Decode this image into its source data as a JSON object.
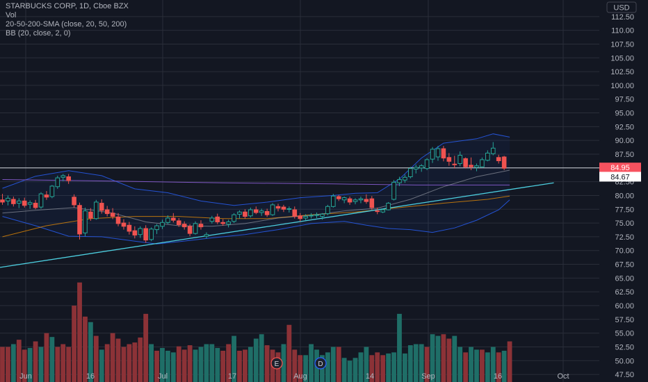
{
  "legend": {
    "title": "STARBUCKS CORP, 1D, Cboe BZX",
    "vol": "Vol",
    "sma": "20-50-200-SMA (close, 20, 50, 200)",
    "bb": "BB (20, close, 2, 0)"
  },
  "currency_button": "USD",
  "colors": {
    "background": "#131722",
    "grid": "#2a2e39",
    "up": "#26a69a",
    "down": "#ef5350",
    "up_volume": "#1f6e67",
    "down_volume": "#8c3237",
    "bb_band": "#2962ff",
    "sma20": "#b2b5be",
    "sma50": "#ff9800",
    "sma200": "#7e57c2",
    "trendline": "#4dd0e1",
    "hline": "#d1d4dc",
    "text": "#b2b5be"
  },
  "price_labels": [
    {
      "value": 84.95,
      "text": "84.95",
      "bg": "#f7525f",
      "fg": "#ffffff"
    },
    {
      "value": 84.67,
      "text": "84.67",
      "bg": "#ffffff",
      "fg": "#131722"
    }
  ],
  "markers": [
    "E",
    "D"
  ],
  "chart_data": {
    "type": "candlestick",
    "y_ticks": [
      47.5,
      50.0,
      52.5,
      55.0,
      57.5,
      60.0,
      62.5,
      65.0,
      67.5,
      70.0,
      72.5,
      75.0,
      77.5,
      80.0,
      82.5,
      85.0,
      87.5,
      90.0,
      92.5,
      95.0,
      97.5,
      100.0,
      102.5,
      105.0,
      107.5,
      110.0,
      112.5
    ],
    "y_tick_labels": [
      "47.50",
      "50.00",
      "52.50",
      "55.00",
      "57.50",
      "60.00",
      "62.50",
      "65.00",
      "67.50",
      "70.00",
      "72.50",
      "75.00",
      "77.50",
      "80.00",
      "82.50",
      "85.00",
      "87.50",
      "90.00",
      "92.50",
      "95.00",
      "97.50",
      "100.00",
      "102.50",
      "105.00",
      "107.50",
      "110.00",
      "112.50"
    ],
    "ylim": [
      46.5,
      115.0
    ],
    "x_labels": [
      "Jun",
      "16",
      "Jul",
      "17",
      "Aug",
      "14",
      "Sep",
      "16",
      "Oct"
    ],
    "horizontal_line": 85.0,
    "candles": [
      {
        "o": 79.2,
        "h": 80.3,
        "l": 78.3,
        "c": 78.8
      },
      {
        "o": 79.0,
        "h": 80.0,
        "l": 78.2,
        "c": 79.5
      },
      {
        "o": 79.3,
        "h": 79.8,
        "l": 78.0,
        "c": 78.5
      },
      {
        "o": 78.6,
        "h": 79.5,
        "l": 77.7,
        "c": 79.0
      },
      {
        "o": 79.0,
        "h": 79.6,
        "l": 77.8,
        "c": 78.2
      },
      {
        "o": 78.4,
        "h": 79.1,
        "l": 77.6,
        "c": 78.7
      },
      {
        "o": 78.6,
        "h": 79.2,
        "l": 77.5,
        "c": 77.8
      },
      {
        "o": 77.9,
        "h": 80.6,
        "l": 77.6,
        "c": 80.3
      },
      {
        "o": 80.1,
        "h": 80.8,
        "l": 79.2,
        "c": 79.7
      },
      {
        "o": 79.8,
        "h": 81.9,
        "l": 79.5,
        "c": 81.7
      },
      {
        "o": 81.6,
        "h": 83.6,
        "l": 81.2,
        "c": 83.2
      },
      {
        "o": 83.3,
        "h": 83.9,
        "l": 82.6,
        "c": 83.6
      },
      {
        "o": 83.4,
        "h": 83.9,
        "l": 82.1,
        "c": 82.7
      },
      {
        "o": 79.7,
        "h": 80.2,
        "l": 77.8,
        "c": 78.3
      },
      {
        "o": 78.2,
        "h": 78.7,
        "l": 72.0,
        "c": 73.0
      },
      {
        "o": 73.2,
        "h": 77.8,
        "l": 72.6,
        "c": 77.2
      },
      {
        "o": 77.0,
        "h": 77.7,
        "l": 75.4,
        "c": 75.9
      },
      {
        "o": 75.8,
        "h": 79.2,
        "l": 75.6,
        "c": 78.8
      },
      {
        "o": 78.6,
        "h": 79.3,
        "l": 76.7,
        "c": 77.3
      },
      {
        "o": 77.4,
        "h": 78.1,
        "l": 76.2,
        "c": 76.7
      },
      {
        "o": 76.8,
        "h": 77.7,
        "l": 75.7,
        "c": 76.2
      },
      {
        "o": 76.1,
        "h": 76.8,
        "l": 74.4,
        "c": 74.9
      },
      {
        "o": 75.0,
        "h": 75.7,
        "l": 73.8,
        "c": 74.4
      },
      {
        "o": 74.6,
        "h": 75.2,
        "l": 72.9,
        "c": 73.5
      },
      {
        "o": 73.6,
        "h": 74.4,
        "l": 72.2,
        "c": 72.8
      },
      {
        "o": 72.9,
        "h": 74.4,
        "l": 72.3,
        "c": 74.0
      },
      {
        "o": 74.0,
        "h": 74.6,
        "l": 71.4,
        "c": 71.9
      },
      {
        "o": 72.0,
        "h": 74.2,
        "l": 71.7,
        "c": 73.9
      },
      {
        "o": 73.8,
        "h": 74.8,
        "l": 73.0,
        "c": 74.5
      },
      {
        "o": 74.4,
        "h": 75.6,
        "l": 73.9,
        "c": 75.1
      },
      {
        "o": 75.1,
        "h": 76.4,
        "l": 74.8,
        "c": 75.9
      },
      {
        "o": 75.9,
        "h": 76.8,
        "l": 75.1,
        "c": 75.5
      },
      {
        "o": 75.4,
        "h": 75.9,
        "l": 74.3,
        "c": 74.7
      },
      {
        "o": 74.8,
        "h": 75.3,
        "l": 73.8,
        "c": 74.3
      },
      {
        "o": 74.4,
        "h": 74.8,
        "l": 72.6,
        "c": 73.1
      },
      {
        "o": 73.1,
        "h": 75.3,
        "l": 72.9,
        "c": 74.9
      },
      {
        "o": 74.8,
        "h": 75.5,
        "l": 73.8,
        "c": 74.3
      },
      {
        "o": 72.6,
        "h": 73.3,
        "l": 72.2,
        "c": 72.9
      },
      {
        "o": 75.3,
        "h": 76.3,
        "l": 74.9,
        "c": 75.9
      },
      {
        "o": 76.1,
        "h": 76.7,
        "l": 74.8,
        "c": 75.2
      },
      {
        "o": 75.1,
        "h": 75.7,
        "l": 74.5,
        "c": 74.9
      },
      {
        "o": 74.8,
        "h": 75.6,
        "l": 74.2,
        "c": 75.2
      },
      {
        "o": 75.3,
        "h": 76.8,
        "l": 75.0,
        "c": 76.5
      },
      {
        "o": 76.6,
        "h": 77.3,
        "l": 75.8,
        "c": 77.0
      },
      {
        "o": 77.0,
        "h": 77.5,
        "l": 75.8,
        "c": 76.2
      },
      {
        "o": 76.3,
        "h": 77.8,
        "l": 76.0,
        "c": 77.4
      },
      {
        "o": 77.4,
        "h": 78.0,
        "l": 76.6,
        "c": 76.9
      },
      {
        "o": 76.9,
        "h": 77.6,
        "l": 76.3,
        "c": 77.2
      },
      {
        "o": 77.1,
        "h": 77.6,
        "l": 76.1,
        "c": 76.5
      },
      {
        "o": 76.5,
        "h": 78.6,
        "l": 76.3,
        "c": 78.3
      },
      {
        "o": 78.0,
        "h": 78.5,
        "l": 77.1,
        "c": 77.7
      },
      {
        "o": 77.9,
        "h": 78.3,
        "l": 77.0,
        "c": 77.5
      },
      {
        "o": 77.5,
        "h": 78.0,
        "l": 76.9,
        "c": 77.6
      },
      {
        "o": 77.4,
        "h": 78.0,
        "l": 75.8,
        "c": 76.2
      },
      {
        "o": 76.3,
        "h": 76.8,
        "l": 75.3,
        "c": 75.8
      },
      {
        "o": 75.9,
        "h": 76.6,
        "l": 75.5,
        "c": 76.2
      },
      {
        "o": 76.3,
        "h": 76.8,
        "l": 75.8,
        "c": 76.4
      },
      {
        "o": 76.4,
        "h": 76.9,
        "l": 75.9,
        "c": 76.5
      },
      {
        "o": 76.2,
        "h": 76.8,
        "l": 75.6,
        "c": 76.6
      },
      {
        "o": 76.7,
        "h": 78.3,
        "l": 76.4,
        "c": 78.0
      },
      {
        "o": 78.0,
        "h": 80.3,
        "l": 77.8,
        "c": 79.9
      },
      {
        "o": 79.8,
        "h": 80.1,
        "l": 79.0,
        "c": 79.4
      },
      {
        "o": 79.2,
        "h": 79.8,
        "l": 78.6,
        "c": 79.6
      },
      {
        "o": 79.4,
        "h": 79.8,
        "l": 78.3,
        "c": 78.8
      },
      {
        "o": 78.9,
        "h": 79.5,
        "l": 78.4,
        "c": 79.2
      },
      {
        "o": 79.2,
        "h": 79.8,
        "l": 78.6,
        "c": 79.4
      },
      {
        "o": 79.3,
        "h": 80.2,
        "l": 78.5,
        "c": 78.9
      },
      {
        "o": 79.4,
        "h": 79.9,
        "l": 77.4,
        "c": 77.8
      },
      {
        "o": 77.2,
        "h": 77.8,
        "l": 76.6,
        "c": 77.1
      },
      {
        "o": 77.0,
        "h": 77.6,
        "l": 76.8,
        "c": 77.4
      },
      {
        "o": 77.4,
        "h": 78.8,
        "l": 77.3,
        "c": 78.6
      },
      {
        "o": 79.3,
        "h": 82.8,
        "l": 79.1,
        "c": 82.4
      },
      {
        "o": 82.3,
        "h": 83.4,
        "l": 81.7,
        "c": 82.9
      },
      {
        "o": 82.8,
        "h": 83.8,
        "l": 82.3,
        "c": 83.3
      },
      {
        "o": 83.4,
        "h": 85.2,
        "l": 83.1,
        "c": 84.9
      },
      {
        "o": 84.8,
        "h": 85.6,
        "l": 84.0,
        "c": 85.1
      },
      {
        "o": 85.0,
        "h": 85.7,
        "l": 84.3,
        "c": 85.4
      },
      {
        "o": 84.9,
        "h": 86.8,
        "l": 84.6,
        "c": 86.5
      },
      {
        "o": 86.6,
        "h": 88.8,
        "l": 85.9,
        "c": 88.4
      },
      {
        "o": 87.0,
        "h": 89.0,
        "l": 86.3,
        "c": 88.5
      },
      {
        "o": 88.5,
        "h": 89.0,
        "l": 86.2,
        "c": 86.8
      },
      {
        "o": 86.9,
        "h": 87.7,
        "l": 85.4,
        "c": 86.2
      },
      {
        "o": 85.7,
        "h": 87.2,
        "l": 84.9,
        "c": 85.6
      },
      {
        "o": 85.8,
        "h": 88.0,
        "l": 85.3,
        "c": 87.3
      },
      {
        "o": 86.7,
        "h": 86.9,
        "l": 84.9,
        "c": 85.2
      },
      {
        "o": 85.5,
        "h": 86.9,
        "l": 84.6,
        "c": 85.2
      },
      {
        "o": 85.1,
        "h": 85.8,
        "l": 84.4,
        "c": 85.4
      },
      {
        "o": 85.2,
        "h": 86.9,
        "l": 85.0,
        "c": 86.5
      },
      {
        "o": 86.4,
        "h": 88.2,
        "l": 86.2,
        "c": 87.7
      },
      {
        "o": 87.6,
        "h": 89.7,
        "l": 87.3,
        "c": 88.6
      },
      {
        "o": 86.9,
        "h": 87.4,
        "l": 85.8,
        "c": 86.3
      },
      {
        "o": 87.0,
        "h": 87.2,
        "l": 84.6,
        "c": 84.95
      }
    ],
    "volume_color": [
      "d",
      "d",
      "u",
      "d",
      "d",
      "u",
      "d",
      "u",
      "d",
      "u",
      "d",
      "d",
      "d",
      "d",
      "d",
      "d",
      "u",
      "d",
      "u",
      "d",
      "d",
      "d",
      "d",
      "d",
      "d",
      "d",
      "d",
      "u",
      "d",
      "u",
      "u",
      "u",
      "d",
      "d",
      "d",
      "u",
      "u",
      "u",
      "u",
      "u",
      "d",
      "d",
      "u",
      "d",
      "d",
      "u",
      "u",
      "u",
      "d",
      "d",
      "d",
      "u",
      "d",
      "d",
      "d",
      "u",
      "u",
      "u",
      "u",
      "u",
      "u",
      "d",
      "u",
      "u",
      "u",
      "u",
      "u",
      "d",
      "d",
      "d",
      "u",
      "u",
      "u",
      "u",
      "u",
      "u",
      "u",
      "d",
      "u",
      "u",
      "d",
      "d",
      "u",
      "u",
      "d",
      "u",
      "u",
      "d",
      "u",
      "u",
      "d",
      "u",
      "d"
    ],
    "volume_level": [
      52.5,
      52.5,
      53.0,
      53.8,
      52.0,
      52.3,
      53.5,
      52.5,
      55.0,
      54.3,
      52.5,
      53.0,
      52.5,
      60.0,
      64.2,
      58.0,
      57.0,
      54.5,
      52.0,
      53.0,
      55.0,
      54.0,
      52.5,
      53.0,
      53.3,
      54.2,
      58.5,
      53.0,
      51.8,
      52.3,
      51.8,
      51.5,
      52.6,
      52.0,
      52.8,
      52.0,
      52.5,
      53.0,
      53.0,
      52.3,
      51.8,
      53.0,
      54.5,
      51.8,
      52.0,
      52.5,
      54.0,
      54.8,
      52.8,
      52.0,
      51.5,
      53.0,
      56.5,
      52.0,
      51.0,
      51.0,
      53.0,
      52.0,
      51.0,
      51.5,
      52.5,
      52.5,
      50.5,
      50.0,
      50.5,
      51.5,
      52.5,
      51.0,
      51.5,
      51.0,
      51.3,
      51.5,
      58.5,
      51.3,
      52.8,
      53.0,
      53.0,
      52.5,
      54.8,
      54.5,
      54.8,
      54.0,
      54.5,
      52.5,
      51.5,
      52.5,
      52.0,
      52.0,
      51.5,
      52.5,
      51.5,
      51.8,
      53.5
    ],
    "sma20": [
      [
        0,
        76.8
      ],
      [
        6,
        77.3
      ],
      [
        13,
        77.8
      ],
      [
        20,
        76.8
      ],
      [
        26,
        75.2
      ],
      [
        32,
        74.5
      ],
      [
        38,
        74.4
      ],
      [
        44,
        74.9
      ],
      [
        50,
        75.9
      ],
      [
        56,
        76.4
      ],
      [
        62,
        77.2
      ],
      [
        68,
        77.7
      ],
      [
        74,
        79.3
      ],
      [
        80,
        81.6
      ],
      [
        86,
        83.4
      ],
      [
        92,
        84.6
      ]
    ],
    "sma50": [
      [
        0,
        72.5
      ],
      [
        8,
        74.5
      ],
      [
        16,
        75.8
      ],
      [
        24,
        76.2
      ],
      [
        32,
        76.2
      ],
      [
        40,
        75.8
      ],
      [
        48,
        75.8
      ],
      [
        56,
        76.5
      ],
      [
        64,
        77.0
      ],
      [
        72,
        77.8
      ],
      [
        80,
        78.6
      ],
      [
        88,
        79.3
      ],
      [
        92,
        79.9
      ]
    ],
    "sma200": [
      [
        0,
        82.9
      ],
      [
        20,
        82.6
      ],
      [
        40,
        82.3
      ],
      [
        60,
        82.1
      ],
      [
        75,
        81.9
      ],
      [
        92,
        81.9
      ]
    ],
    "bb_upper": [
      [
        0,
        81.3
      ],
      [
        6,
        83.5
      ],
      [
        12,
        84.5
      ],
      [
        18,
        83.6
      ],
      [
        24,
        81.2
      ],
      [
        30,
        80.5
      ],
      [
        36,
        79.0
      ],
      [
        42,
        78.2
      ],
      [
        48,
        78.8
      ],
      [
        54,
        79.6
      ],
      [
        60,
        80.0
      ],
      [
        64,
        80.4
      ],
      [
        68,
        80.5
      ],
      [
        72,
        83.0
      ],
      [
        76,
        86.8
      ],
      [
        80,
        89.5
      ],
      [
        86,
        90.3
      ],
      [
        89,
        91.2
      ],
      [
        92,
        90.6
      ]
    ],
    "bb_lower": [
      [
        0,
        76.2
      ],
      [
        6,
        74.5
      ],
      [
        12,
        72.6
      ],
      [
        18,
        72.5
      ],
      [
        24,
        71.7
      ],
      [
        28,
        71.2
      ],
      [
        32,
        71.6
      ],
      [
        38,
        72.3
      ],
      [
        44,
        72.9
      ],
      [
        50,
        73.8
      ],
      [
        56,
        74.9
      ],
      [
        62,
        75.3
      ],
      [
        66,
        74.6
      ],
      [
        70,
        74.0
      ],
      [
        74,
        73.8
      ],
      [
        78,
        73.3
      ],
      [
        82,
        74.1
      ],
      [
        86,
        75.5
      ],
      [
        90,
        77.4
      ],
      [
        92,
        79.2
      ]
    ],
    "trendline": [
      [
        -2,
        66.7
      ],
      [
        100,
        82.3
      ]
    ]
  }
}
